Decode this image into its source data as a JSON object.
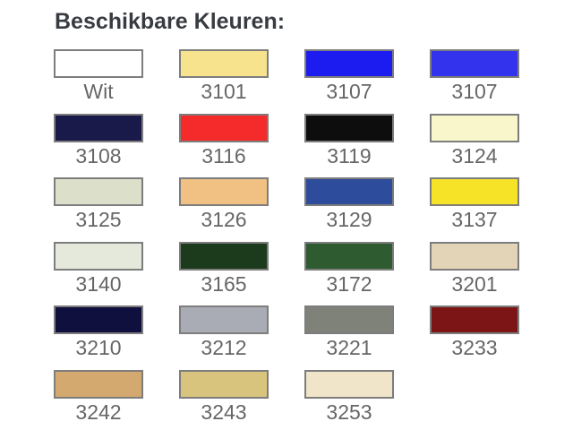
{
  "title": "Beschikbare Kleuren:",
  "palette": {
    "border_color": "#7d7d7d",
    "label_color": "#666666",
    "title_color": "#383c41",
    "background": "#ffffff"
  },
  "swatches": [
    {
      "label": "Wit",
      "color": "#ffffff"
    },
    {
      "label": "3101",
      "color": "#f7e28e"
    },
    {
      "label": "3107",
      "color": "#1c1cf0"
    },
    {
      "label": "3107",
      "color": "#3333ee"
    },
    {
      "label": "3108",
      "color": "#1a1a4a"
    },
    {
      "label": "3116",
      "color": "#f52a2a"
    },
    {
      "label": "3119",
      "color": "#0d0d0d"
    },
    {
      "label": "3124",
      "color": "#f8f6ca"
    },
    {
      "label": "3125",
      "color": "#dce0ca"
    },
    {
      "label": "3126",
      "color": "#f0c183"
    },
    {
      "label": "3129",
      "color": "#2d4c9c"
    },
    {
      "label": "3137",
      "color": "#f6e328"
    },
    {
      "label": "3140",
      "color": "#e5e9db"
    },
    {
      "label": "3165",
      "color": "#1c3b1c"
    },
    {
      "label": "3172",
      "color": "#2f5b31"
    },
    {
      "label": "3201",
      "color": "#e4d4b7"
    },
    {
      "label": "3210",
      "color": "#10103f"
    },
    {
      "label": "3212",
      "color": "#a9abb5"
    },
    {
      "label": "3221",
      "color": "#7f8279"
    },
    {
      "label": "3233",
      "color": "#7c1616"
    },
    {
      "label": "3242",
      "color": "#d3a96f"
    },
    {
      "label": "3243",
      "color": "#d9c47d"
    },
    {
      "label": "3253",
      "color": "#f0e4c9"
    }
  ]
}
